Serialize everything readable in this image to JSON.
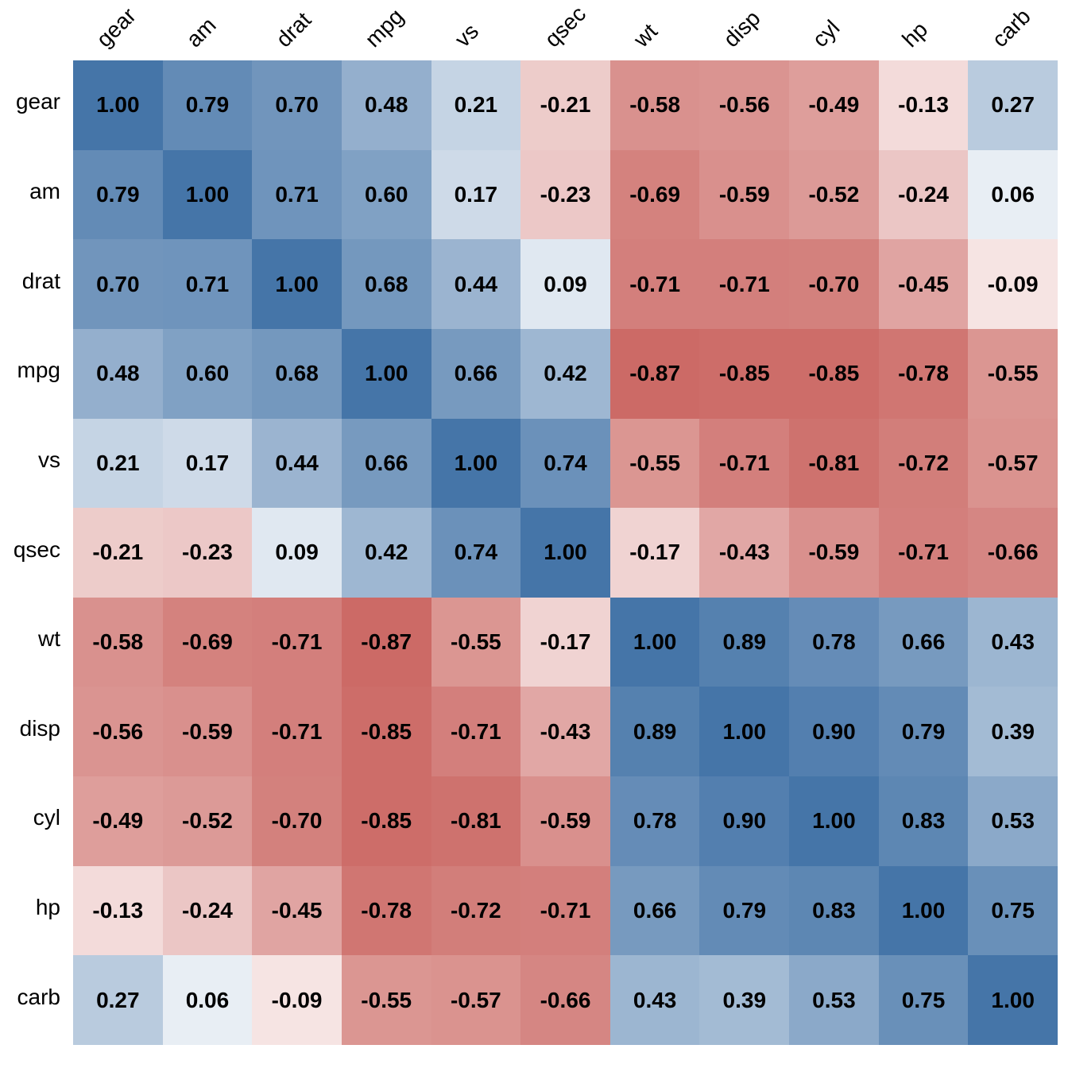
{
  "chart_data": {
    "type": "heatmap",
    "title": "",
    "xlabel": "",
    "ylabel": "",
    "legend": "none",
    "color_scale": {
      "negative": "#c65a55",
      "zero": "#ffffff",
      "positive": "#4575a8",
      "range": [
        -1,
        1
      ]
    },
    "row_labels": [
      "gear",
      "am",
      "drat",
      "mpg",
      "vs",
      "qsec",
      "wt",
      "disp",
      "cyl",
      "hp",
      "carb"
    ],
    "col_labels": [
      "gear",
      "am",
      "drat",
      "mpg",
      "vs",
      "qsec",
      "wt",
      "disp",
      "cyl",
      "hp",
      "carb"
    ],
    "values": [
      [
        1.0,
        0.79,
        0.7,
        0.48,
        0.21,
        -0.21,
        -0.58,
        -0.56,
        -0.49,
        -0.13,
        0.27
      ],
      [
        0.79,
        1.0,
        0.71,
        0.6,
        0.17,
        -0.23,
        -0.69,
        -0.59,
        -0.52,
        -0.24,
        0.06
      ],
      [
        0.7,
        0.71,
        1.0,
        0.68,
        0.44,
        0.09,
        -0.71,
        -0.71,
        -0.7,
        -0.45,
        -0.09
      ],
      [
        0.48,
        0.6,
        0.68,
        1.0,
        0.66,
        0.42,
        -0.87,
        -0.85,
        -0.85,
        -0.78,
        -0.55
      ],
      [
        0.21,
        0.17,
        0.44,
        0.66,
        1.0,
        0.74,
        -0.55,
        -0.71,
        -0.81,
        -0.72,
        -0.57
      ],
      [
        -0.21,
        -0.23,
        0.09,
        0.42,
        0.74,
        1.0,
        -0.17,
        -0.43,
        -0.59,
        -0.71,
        -0.66
      ],
      [
        -0.58,
        -0.69,
        -0.71,
        -0.87,
        -0.55,
        -0.17,
        1.0,
        0.89,
        0.78,
        0.66,
        0.43
      ],
      [
        -0.56,
        -0.59,
        -0.71,
        -0.85,
        -0.71,
        -0.43,
        0.89,
        1.0,
        0.9,
        0.79,
        0.39
      ],
      [
        -0.49,
        -0.52,
        -0.7,
        -0.85,
        -0.81,
        -0.59,
        0.78,
        0.9,
        1.0,
        0.83,
        0.53
      ],
      [
        -0.13,
        -0.24,
        -0.45,
        -0.78,
        -0.72,
        -0.71,
        0.66,
        0.79,
        0.83,
        1.0,
        0.75
      ],
      [
        0.27,
        0.06,
        -0.09,
        -0.55,
        -0.57,
        -0.66,
        0.43,
        0.39,
        0.53,
        0.75,
        1.0
      ]
    ]
  }
}
